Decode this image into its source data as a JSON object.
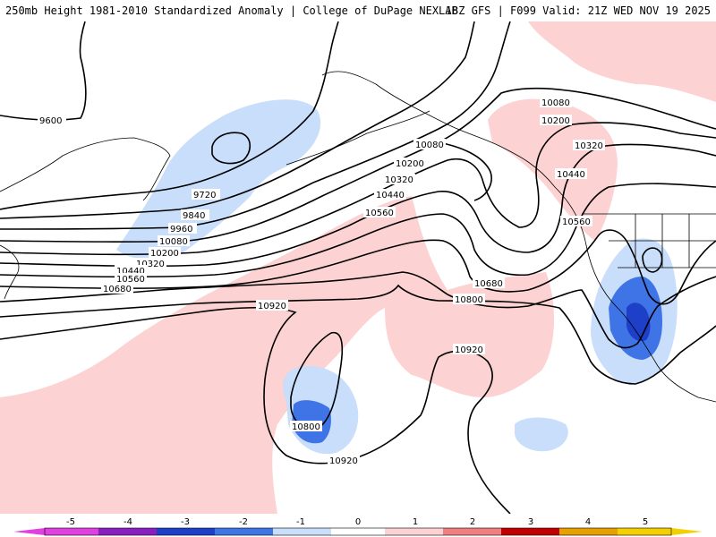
{
  "header": {
    "left": "250mb Height 1981-2010 Standardized Anomaly | College of DuPage NEXLAB",
    "right": "18Z GFS | F099 Valid: 21Z WED NOV 19 2025"
  },
  "contours": {
    "c9600": "9600",
    "c9720": "9720",
    "c9840": "9840",
    "c9960": "9960",
    "c10080a": "10080",
    "c10080b": "10080",
    "c10080c": "10080",
    "c10200a": "10200",
    "c10200b": "10200",
    "c10200c": "10200",
    "c10320a": "10320",
    "c10320b": "10320",
    "c10320c": "10320",
    "c10440a": "10440",
    "c10440b": "10440",
    "c10440c": "10440",
    "c10560a": "10560",
    "c10560b": "10560",
    "c10560c": "10560",
    "c10680a": "10680",
    "c10680b": "10680",
    "c10800a": "10800",
    "c10800b": "10800",
    "c10920a": "10920",
    "c10920b": "10920",
    "c10920c": "10920"
  },
  "scale": {
    "ticks": [
      "-5",
      "-4",
      "-3",
      "-2",
      "-1",
      "0",
      "1",
      "2",
      "3",
      "4",
      "5"
    ],
    "colors": {
      "n5": "#e040e0",
      "n4": "#8a1fc0",
      "n3": "#1e3fc8",
      "n2": "#3f74e6",
      "n1": "#c8defa",
      "z": "#ffffff",
      "p1": "#fcd2d2",
      "p2": "#f08080",
      "p3": "#c00000",
      "p4": "#e6a000",
      "p5": "#f4d000"
    }
  }
}
